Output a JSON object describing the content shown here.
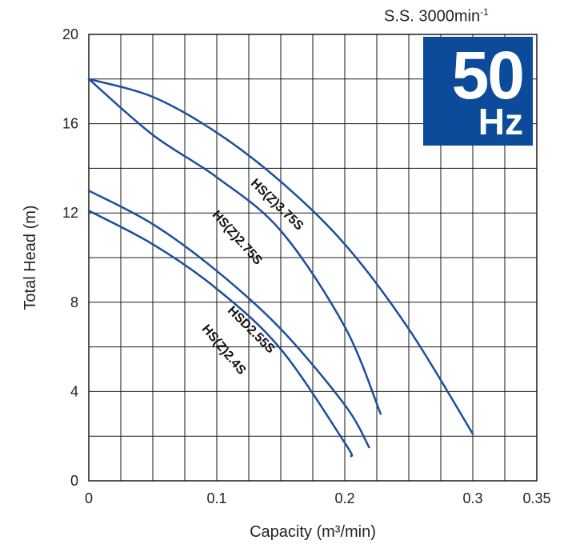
{
  "chart_data": {
    "type": "line",
    "xlabel": "Capacity (m³/min)",
    "ylabel": "Total Head (m)",
    "xlim": [
      0,
      0.35
    ],
    "ylim": [
      0,
      20
    ],
    "x_ticks": [
      "0",
      "0.1",
      "0.2",
      "0.3",
      "0.35"
    ],
    "x_tick_values": [
      0,
      0.1,
      0.2,
      0.3,
      0.35
    ],
    "y_ticks": [
      "0",
      "4",
      "8",
      "12",
      "16",
      "20"
    ],
    "y_tick_values": [
      0,
      4,
      8,
      12,
      16,
      20
    ],
    "grid": true,
    "series": [
      {
        "name": "HS(Z)3.75S",
        "color": "#1a4f9c",
        "x": [
          0,
          0.05,
          0.1,
          0.15,
          0.2,
          0.25,
          0.3
        ],
        "y": [
          18,
          17.2,
          15.6,
          13.4,
          10.6,
          6.8,
          2.1
        ]
      },
      {
        "name": "HS(Z)2.75S",
        "color": "#1a4f9c",
        "x": [
          0,
          0.05,
          0.1,
          0.15,
          0.2,
          0.228
        ],
        "y": [
          18,
          15.5,
          13.6,
          11.2,
          6.9,
          3.0
        ]
      },
      {
        "name": "HSD2.55S",
        "color": "#1a4f9c",
        "x": [
          0,
          0.05,
          0.1,
          0.15,
          0.2,
          0.219
        ],
        "y": [
          13.0,
          11.5,
          9.4,
          6.8,
          3.4,
          1.5
        ]
      },
      {
        "name": "HS(Z)2.4S",
        "color": "#1a4f9c",
        "x": [
          0,
          0.05,
          0.1,
          0.15,
          0.2,
          0.205
        ],
        "y": [
          12.1,
          10.6,
          8.6,
          5.9,
          1.7,
          1.1
        ]
      }
    ]
  },
  "badge": {
    "speed_prefix": "S.S. 3000min",
    "speed_sup": "-1",
    "freq_value": "50",
    "freq_unit": "Hz",
    "color": "#0c4a9a"
  }
}
